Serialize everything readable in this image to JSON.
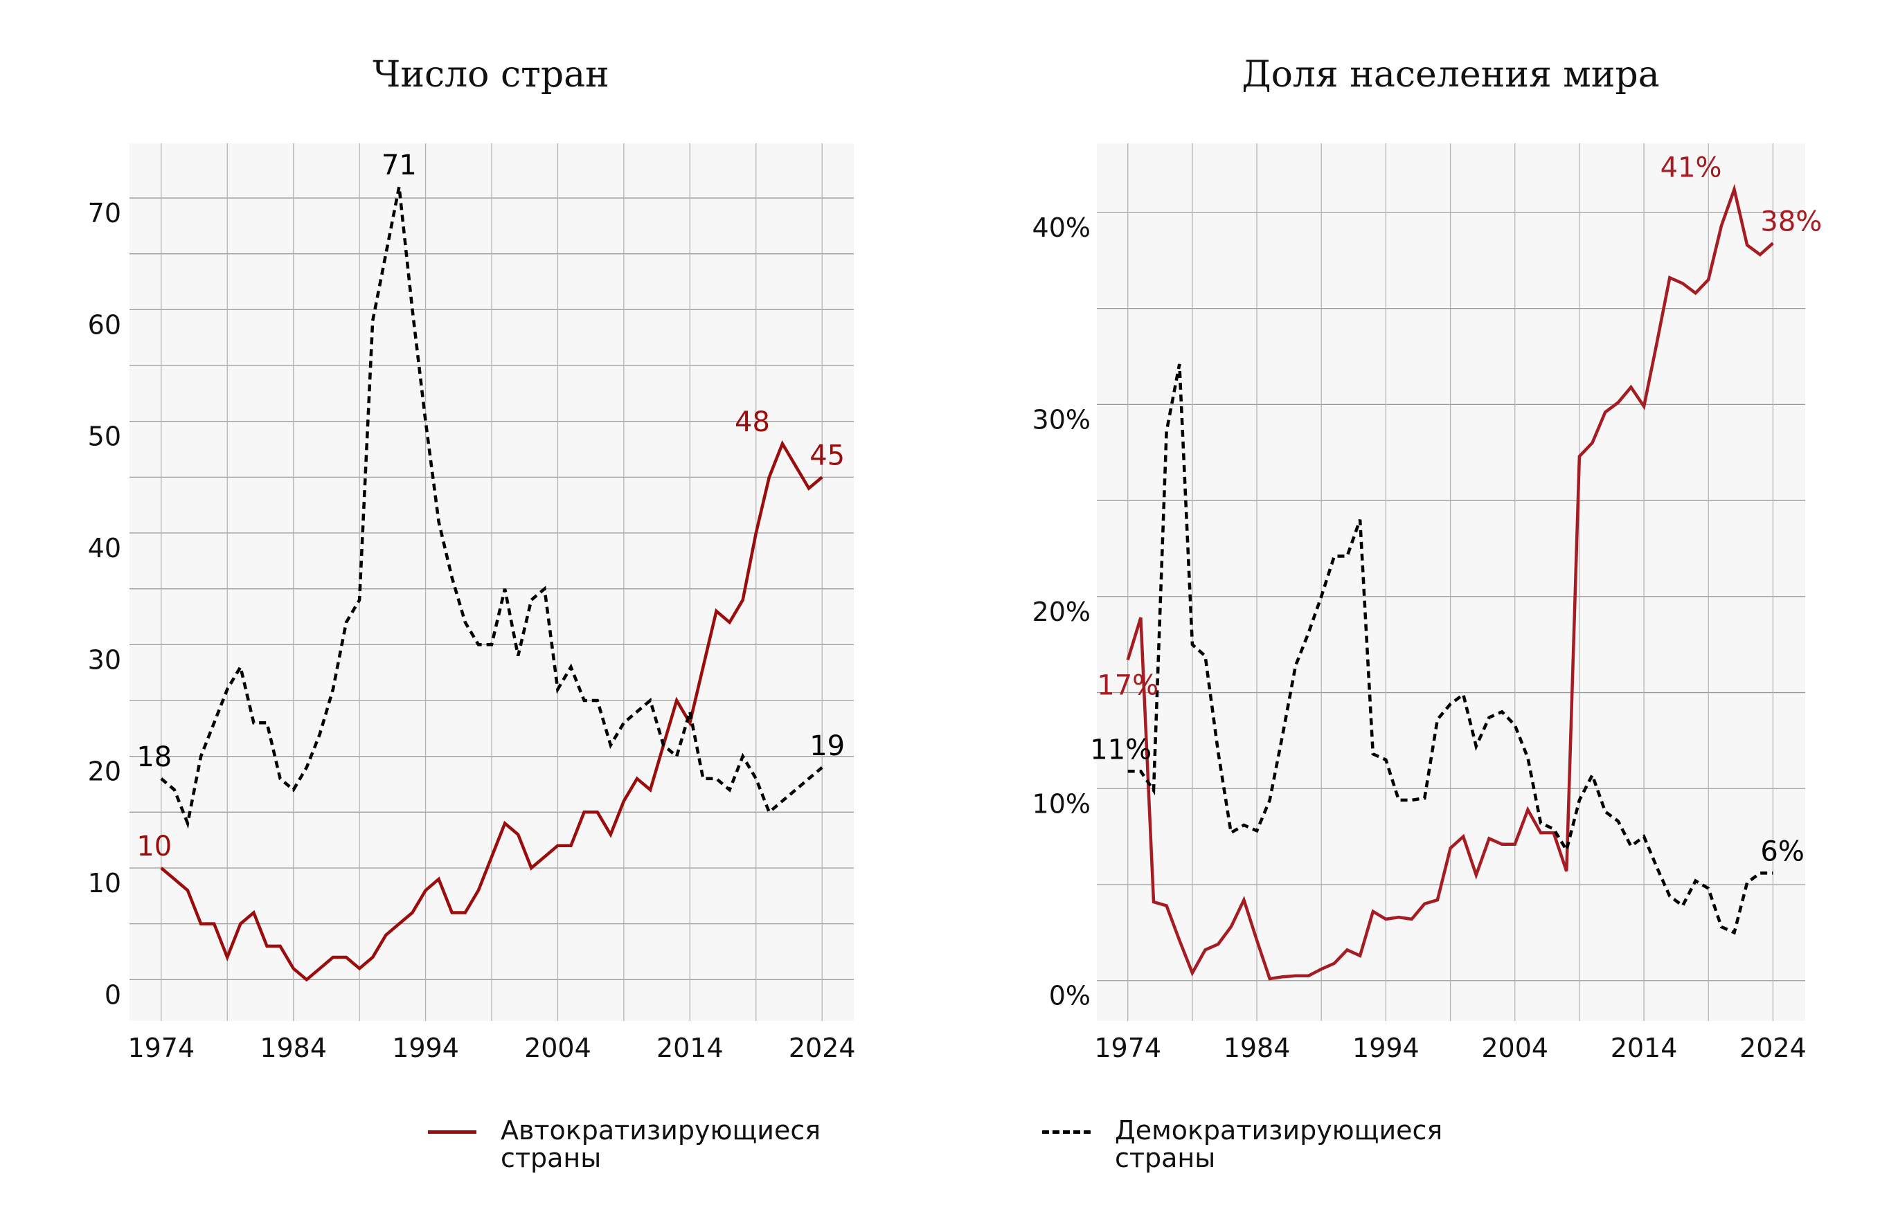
{
  "legend": {
    "autocratizing": {
      "label_line1": "Автократизирующиеся",
      "label_line2": "страны",
      "color": "#9b0d0d",
      "style": "solid"
    },
    "democratizing": {
      "label_line1": "Демократизирующиеся",
      "label_line2": "страны",
      "color": "#000000",
      "style": "dashed"
    }
  },
  "chart_data": [
    {
      "type": "line",
      "title": "Число стран",
      "xlabel": "",
      "ylabel": "",
      "xlim": [
        1971.6,
        2026.4
      ],
      "ylim": [
        -3.7,
        74.9
      ],
      "x_ticks": [
        1974,
        1984,
        1994,
        2004,
        2014,
        2024
      ],
      "y_ticks": [
        0,
        10,
        20,
        30,
        40,
        50,
        60,
        70
      ],
      "y_tick_labels": [
        "0",
        "10",
        "20",
        "30",
        "40",
        "50",
        "60",
        "70"
      ],
      "grid": true,
      "x": [
        1974,
        1975,
        1976,
        1977,
        1978,
        1979,
        1980,
        1981,
        1982,
        1983,
        1984,
        1985,
        1986,
        1987,
        1988,
        1989,
        1990,
        1991,
        1992,
        1993,
        1994,
        1995,
        1996,
        1997,
        1998,
        1999,
        2000,
        2001,
        2002,
        2003,
        2004,
        2005,
        2006,
        2007,
        2008,
        2009,
        2010,
        2011,
        2012,
        2013,
        2014,
        2015,
        2016,
        2017,
        2018,
        2019,
        2020,
        2021,
        2022,
        2023,
        2024
      ],
      "series": [
        {
          "key": "autocratizing",
          "color": "#9b0d0d",
          "values": [
            10,
            9,
            8,
            5,
            5,
            2,
            5,
            6,
            3,
            3,
            1,
            0,
            1,
            2,
            2,
            1,
            2,
            4,
            5,
            6,
            8,
            9,
            6,
            6,
            8,
            11,
            14,
            13,
            10,
            11,
            12,
            12,
            15,
            15,
            13,
            16,
            18,
            17,
            21,
            25,
            23,
            28,
            33,
            32,
            34,
            40,
            45,
            48,
            46,
            44,
            45
          ]
        },
        {
          "key": "democratizing",
          "color": "#000000",
          "values": [
            18,
            17,
            14,
            20,
            23,
            26,
            28,
            23,
            23,
            18,
            17,
            19,
            22,
            26,
            32,
            34,
            59,
            65,
            71,
            60,
            50,
            41,
            36,
            32,
            30,
            30,
            35,
            29,
            34,
            35,
            26,
            28,
            25,
            25,
            21,
            23,
            24,
            25,
            21,
            20,
            24,
            18,
            18,
            17,
            20,
            18,
            15,
            16,
            17,
            18,
            19
          ]
        }
      ],
      "annotations": [
        {
          "series": "democratizing",
          "year": 1992,
          "text": "71",
          "color": "#000000",
          "position": "above"
        },
        {
          "series": "democratizing",
          "year": 1974,
          "text": "18",
          "color": "#000000",
          "position": "above"
        },
        {
          "series": "autocratizing",
          "year": 1974,
          "text": "10",
          "color": "#9b0d0d",
          "position": "above"
        },
        {
          "series": "autocratizing",
          "year": 2021,
          "text": "48",
          "color": "#9b0d0d",
          "position": "above-left"
        },
        {
          "series": "autocratizing",
          "year": 2024,
          "text": "45",
          "color": "#9b0d0d",
          "position": "above"
        },
        {
          "series": "democratizing",
          "year": 2024,
          "text": "19",
          "color": "#000000",
          "position": "above"
        }
      ]
    },
    {
      "type": "line",
      "title": "Доля населения мира",
      "xlabel": "",
      "ylabel": "",
      "xlim": [
        1971.6,
        2026.5
      ],
      "ylim": [
        -2.1,
        43.6
      ],
      "x_ticks": [
        1974,
        1984,
        1994,
        2004,
        2014,
        2024
      ],
      "y_ticks": [
        0,
        10,
        20,
        30,
        40
      ],
      "y_tick_labels": [
        "0%",
        "10%",
        "20%",
        "30%",
        "40%"
      ],
      "grid": true,
      "x": [
        1974,
        1975,
        1976,
        1977,
        1978,
        1979,
        1980,
        1981,
        1982,
        1983,
        1984,
        1985,
        1986,
        1987,
        1988,
        1989,
        1990,
        1991,
        1992,
        1993,
        1994,
        1995,
        1996,
        1997,
        1998,
        1999,
        2000,
        2001,
        2002,
        2003,
        2004,
        2005,
        2006,
        2007,
        2008,
        2009,
        2010,
        2011,
        2012,
        2013,
        2014,
        2015,
        2016,
        2017,
        2018,
        2019,
        2020,
        2021,
        2022,
        2023,
        2024
      ],
      "series": [
        {
          "key": "autocratizing",
          "color": "#a51d22",
          "values": [
            16.7,
            18.9,
            4.1,
            3.9,
            2.1,
            0.4,
            1.6,
            1.9,
            2.8,
            4.2,
            2.1,
            0.1,
            0.2,
            0.25,
            0.25,
            0.6,
            0.9,
            1.6,
            1.3,
            3.6,
            3.2,
            3.3,
            3.2,
            4.0,
            4.2,
            6.9,
            7.5,
            5.5,
            7.4,
            7.1,
            7.1,
            8.9,
            7.7,
            7.7,
            5.7,
            27.3,
            28.0,
            29.6,
            30.1,
            30.9,
            29.9,
            33.2,
            36.6,
            36.3,
            35.8,
            36.5,
            39.3,
            41.2,
            38.3,
            37.8,
            38.4
          ]
        },
        {
          "key": "democratizing",
          "color": "#000000",
          "values": [
            10.9,
            10.9,
            9.9,
            28.6,
            32.1,
            17.5,
            16.9,
            11.9,
            7.7,
            8.1,
            7.8,
            9.4,
            12.8,
            16.4,
            18.1,
            20.0,
            22.1,
            22.1,
            24.0,
            11.8,
            11.5,
            9.4,
            9.4,
            9.5,
            13.6,
            14.4,
            14.9,
            12.2,
            13.7,
            14.0,
            13.3,
            11.6,
            8.2,
            7.9,
            6.8,
            9.4,
            10.7,
            8.8,
            8.3,
            7.0,
            7.5,
            5.9,
            4.4,
            3.9,
            5.2,
            4.8,
            2.8,
            2.5,
            5.1,
            5.6,
            5.6
          ]
        }
      ],
      "annotations": [
        {
          "series": "autocratizing",
          "year": 2021,
          "text": "41%",
          "color": "#a51d22",
          "position": "above-left"
        },
        {
          "series": "autocratizing",
          "year": 2024,
          "text": "38%",
          "color": "#a51d22",
          "position": "above"
        },
        {
          "series": "autocratizing",
          "year": 1974,
          "text": "17%",
          "color": "#a51d22",
          "position": "below"
        },
        {
          "series": "democratizing",
          "year": 1974,
          "text": "11%",
          "color": "#000000",
          "position": "above"
        },
        {
          "series": "democratizing",
          "year": 2024,
          "text": "6%",
          "color": "#000000",
          "position": "above"
        }
      ]
    }
  ]
}
